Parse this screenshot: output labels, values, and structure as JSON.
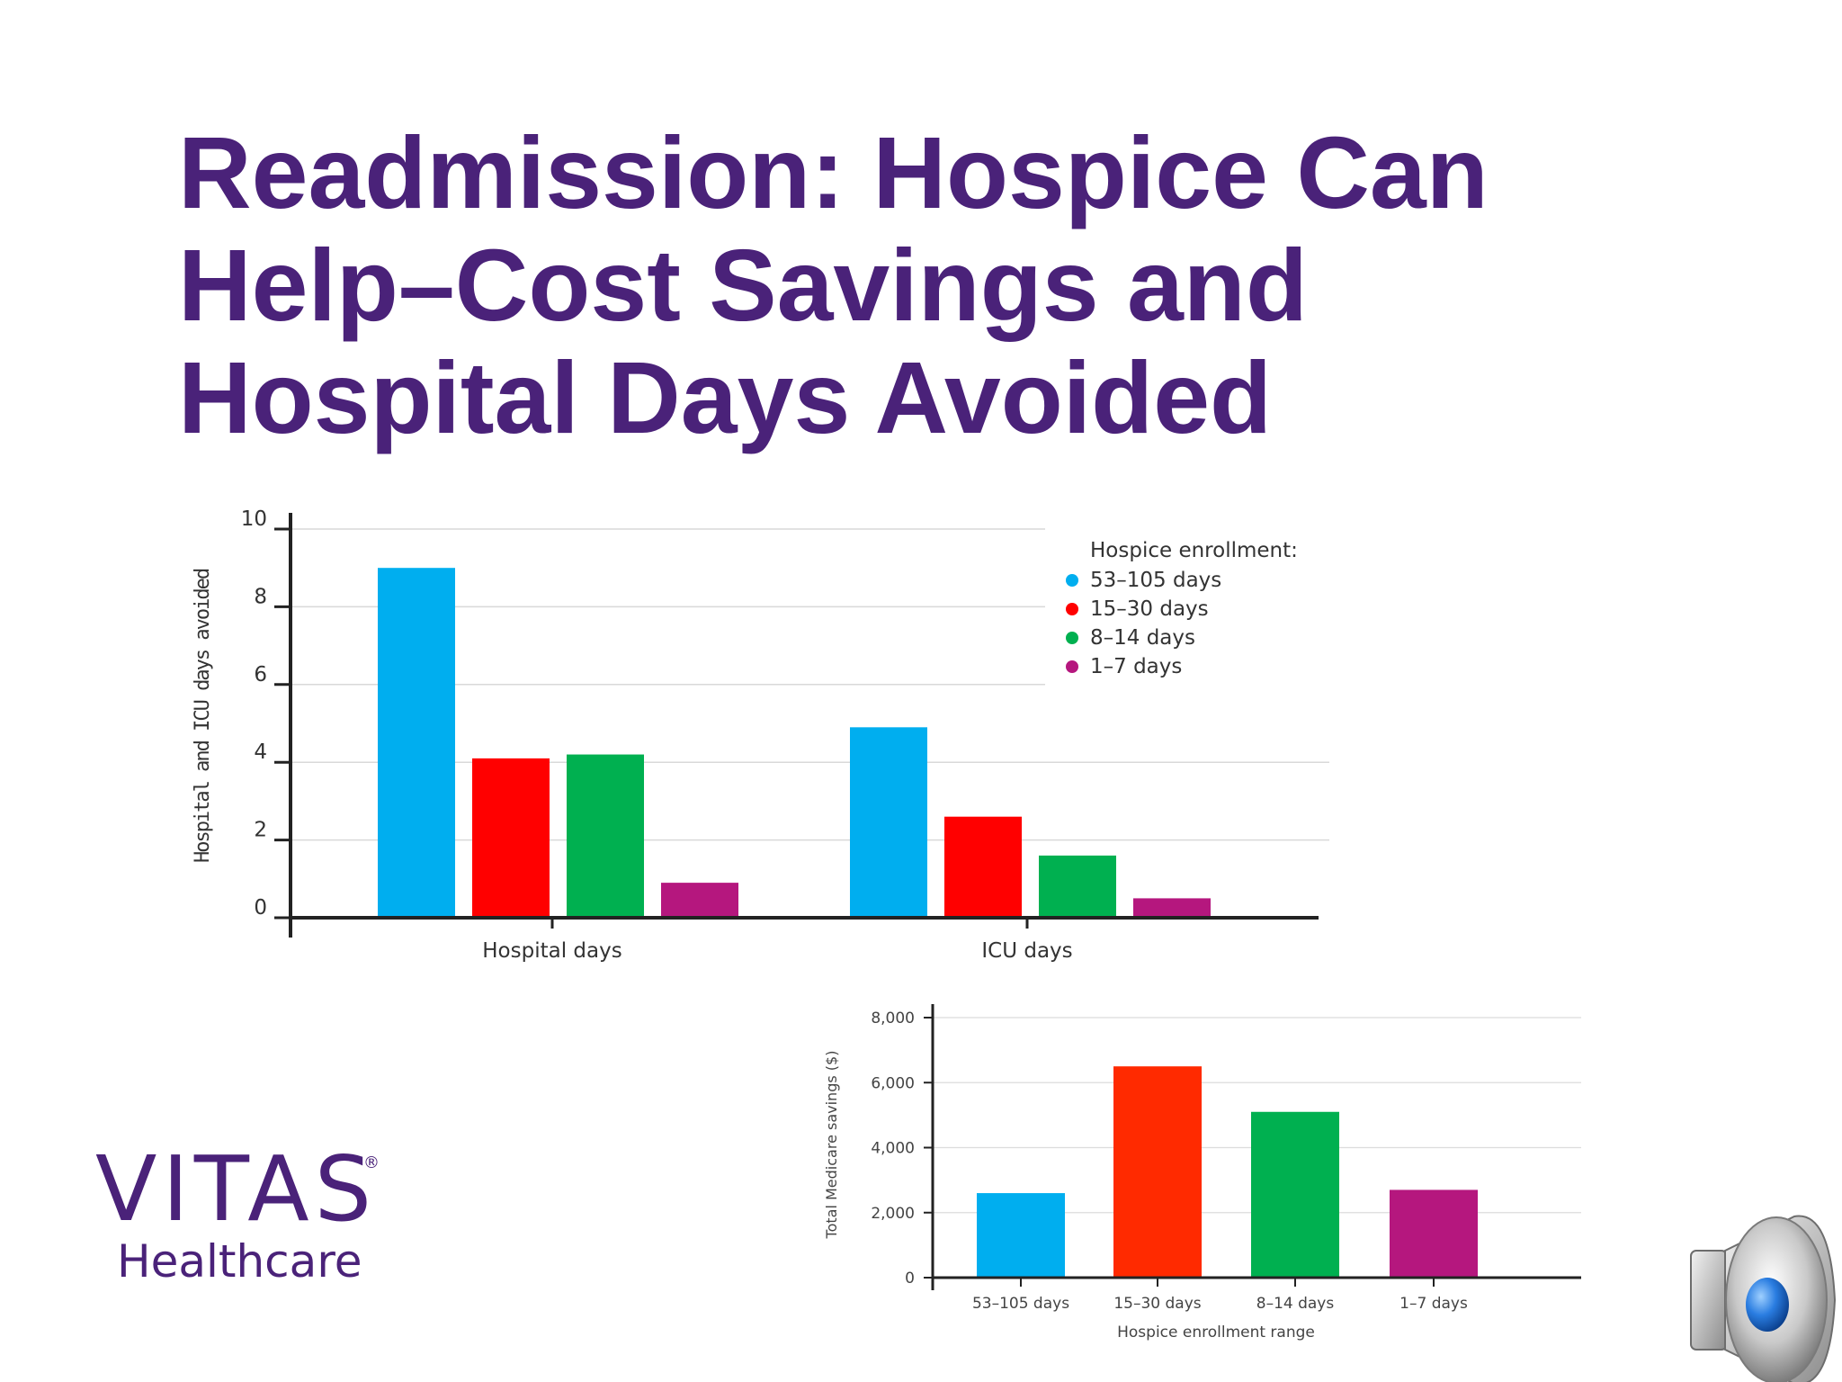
{
  "slide": {
    "title_lines": [
      "Readmission: Hospice Can",
      "Help–Cost Savings and",
      "Hospital Days Avoided"
    ]
  },
  "logo": {
    "name": "VITAS",
    "registered": "®",
    "subtitle": "Healthcare"
  },
  "speaker_icon": "speaker-icon",
  "colors": {
    "title": "#4a2279",
    "series": [
      "#00aeef",
      "#ff0000",
      "#00b050",
      "#b5177e"
    ],
    "savings": [
      "#00aeef",
      "#ff2a00",
      "#00b050",
      "#b5177e"
    ]
  },
  "chart_data": [
    {
      "type": "bar",
      "categories": [
        "Hospital days",
        "ICU days"
      ],
      "series": [
        {
          "name": "53–105 days",
          "values": [
            9.0,
            4.9
          ]
        },
        {
          "name": "15–30 days",
          "values": [
            4.1,
            2.6
          ]
        },
        {
          "name": "8–14 days",
          "values": [
            4.2,
            1.6
          ]
        },
        {
          "name": "1–7 days",
          "values": [
            0.9,
            0.5
          ]
        }
      ],
      "ylabel": "Hospital and ICU days avoided",
      "ylim": [
        0,
        10
      ],
      "yticks": [
        "0",
        "2",
        "4",
        "6",
        "8",
        "10"
      ],
      "legend_title": "Hospice enrollment:",
      "legend_position": "top-right",
      "grid": true
    },
    {
      "type": "bar",
      "categories": [
        "53–105 days",
        "15–30 days",
        "8–14 days",
        "1–7 days"
      ],
      "values": [
        2600,
        6500,
        5100,
        2700
      ],
      "xlabel": "Hospice enrollment range",
      "ylabel": "Total Medicare savings ($)",
      "ylim": [
        0,
        8000
      ],
      "yticks": [
        "0",
        "2,000",
        "4,000",
        "6,000",
        "8,000"
      ],
      "grid": true
    }
  ]
}
